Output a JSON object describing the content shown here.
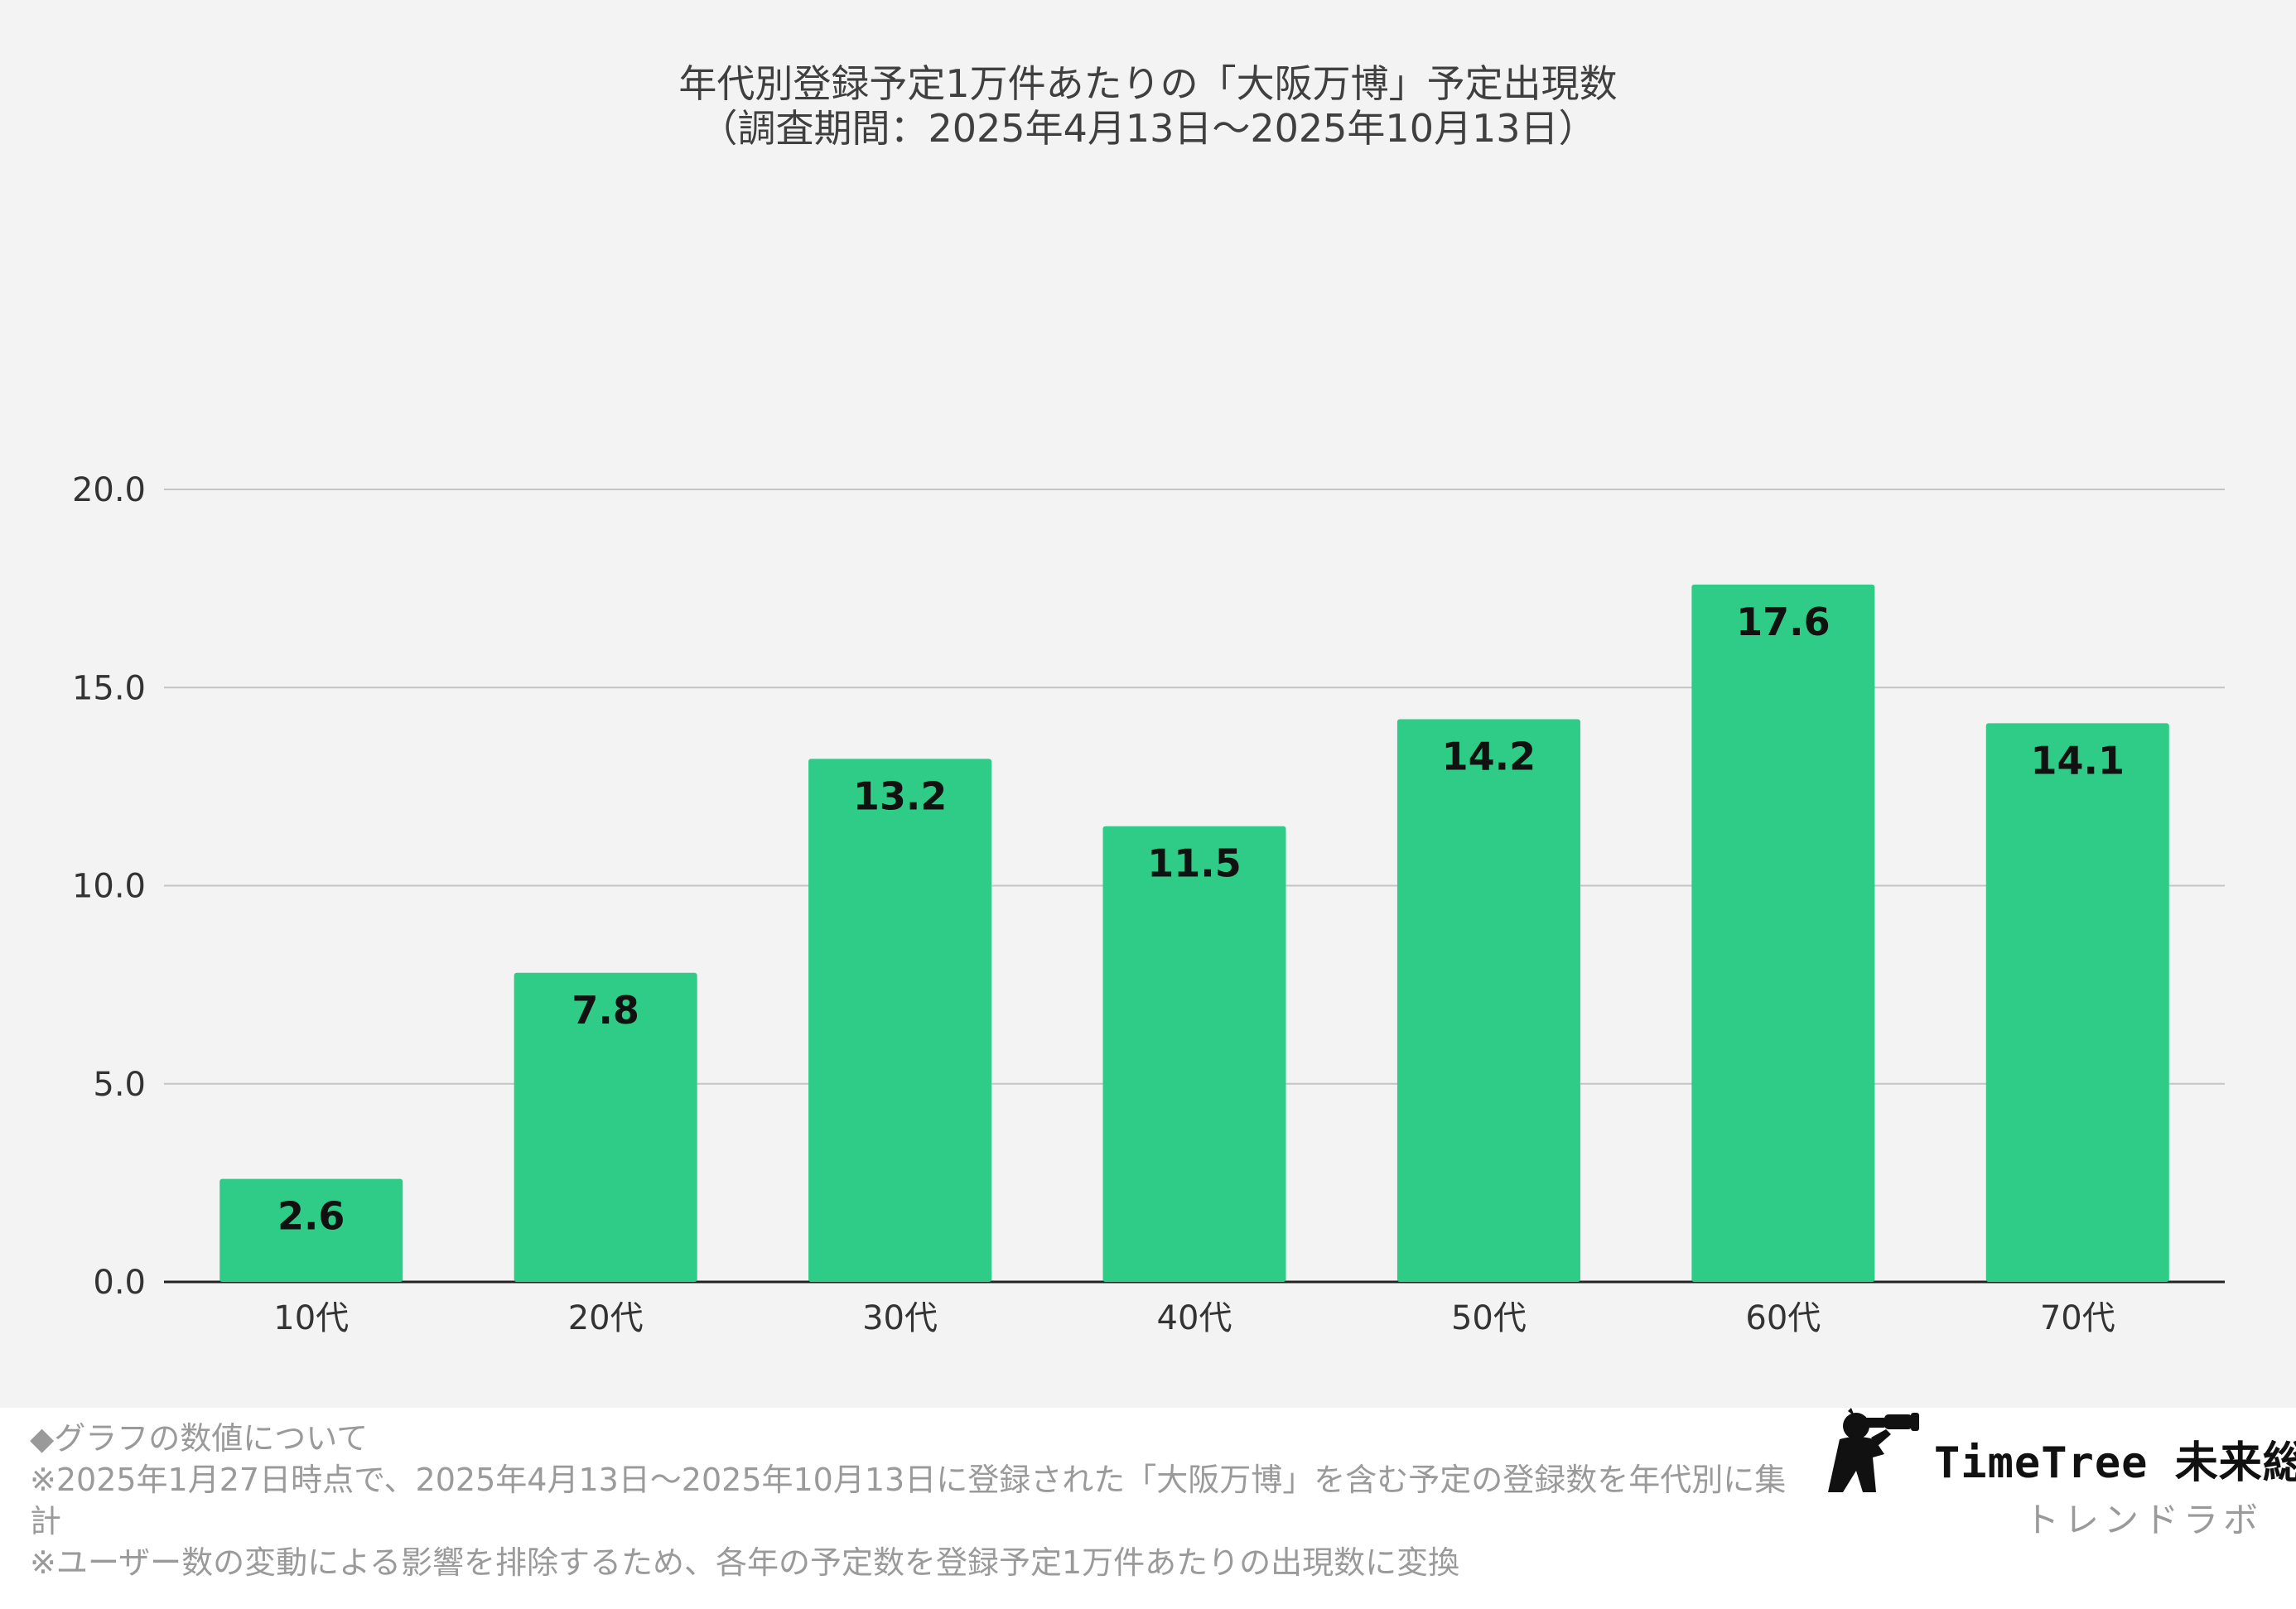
{
  "chart_data": {
    "type": "bar",
    "title_lines": [
      "年代別登録予定1万件あたりの「大阪万博」予定出現数",
      "（調査期間：2025年4月13日〜2025年10月13日）"
    ],
    "categories": [
      "10代",
      "20代",
      "30代",
      "40代",
      "50代",
      "60代",
      "70代"
    ],
    "values": [
      2.6,
      7.8,
      13.2,
      11.5,
      14.2,
      17.6,
      14.1
    ],
    "data_labels": [
      "2.6",
      "7.8",
      "13.2",
      "11.5",
      "14.2",
      "17.6",
      "14.1"
    ],
    "ylim": [
      0,
      20
    ],
    "yticks": [
      "0.0",
      "5.0",
      "10.0",
      "15.0",
      "20.0"
    ],
    "xlabel": "",
    "ylabel": "",
    "bar_color": "#2ecc87",
    "grid": true
  },
  "footnotes": [
    "◆グラフの数値について",
    "※2025年1月27日時点で、2025年4月13日〜2025年10月13日に登録された「大阪万博」を含む予定の登録数を年代別に集計",
    "※ユーザー数の変動による影響を排除するため、各年の予定数を登録予定1万件あたりの出現数に変換"
  ],
  "brand": {
    "name": "TimeTree 未来総研",
    "sub": "トレンドラボ",
    "icon": "binoculars-person-icon"
  }
}
